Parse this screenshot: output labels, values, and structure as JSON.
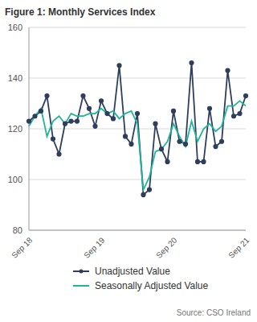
{
  "chart_data": {
    "type": "line",
    "title": "Figure 1: Monthly Services Index",
    "annotations": [
      "Source: CSO Ireland"
    ],
    "categories": [
      "Sep 18",
      null,
      null,
      null,
      null,
      null,
      null,
      null,
      null,
      null,
      null,
      null,
      "Sep 19",
      null,
      null,
      null,
      null,
      null,
      null,
      null,
      null,
      null,
      null,
      null,
      "Sep 20",
      null,
      null,
      null,
      null,
      null,
      null,
      null,
      null,
      null,
      null,
      null,
      "Sep 21"
    ],
    "series": [
      {
        "name": "Unadjusted Value",
        "color": "#2f3e5c",
        "marker": "circle",
        "line_style": "solid",
        "values": [
          123,
          125,
          127,
          133,
          116,
          110,
          122,
          123,
          123,
          133,
          128,
          121,
          131,
          126,
          124,
          145,
          117,
          114,
          126,
          94,
          96,
          122,
          112,
          107,
          127,
          115,
          114,
          146,
          107,
          107,
          128,
          113,
          115,
          143,
          125,
          126,
          133
        ]
      },
      {
        "name": "Seasonally Adjusted Value",
        "color": "#1fb59a",
        "marker": "none",
        "line_style": "solid",
        "values": [
          121,
          125,
          128,
          117,
          123,
          125,
          122,
          126,
          125,
          125,
          126,
          126,
          128,
          126,
          127,
          124,
          126,
          127,
          122,
          96,
          101,
          111,
          112,
          115,
          122,
          117,
          113,
          123,
          115,
          120,
          122,
          119,
          121,
          129,
          129,
          131,
          129
        ]
      }
    ],
    "ylim": [
      80,
      160
    ],
    "yticks": [
      80,
      100,
      120,
      140,
      160
    ],
    "grid": true,
    "legend": "bottom"
  }
}
